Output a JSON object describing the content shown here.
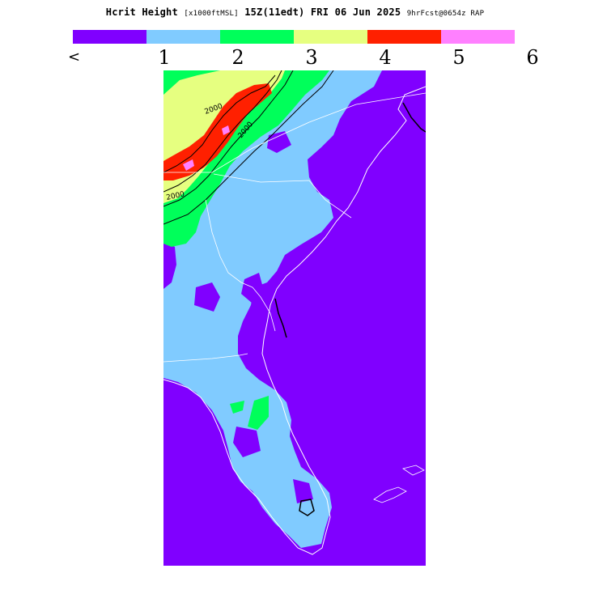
{
  "title": {
    "field": "Hcrit Height",
    "units": "[x1000ftMSL]",
    "valid": "15Z(11edt) FRI 06 Jun 2025",
    "forecast": "9hrFcst@0654z RAP"
  },
  "legend": {
    "left_marker": "<",
    "ticks": [
      "1",
      "2",
      "3",
      "4",
      "5",
      "6"
    ],
    "colors": [
      "#8000ff",
      "#80cbff",
      "#00ff5a",
      "#e6ff80",
      "#ff2000",
      "#ff80ff"
    ]
  },
  "map": {
    "region": "Southeast US",
    "contour_labels": [
      "2000",
      "2000",
      "2000"
    ]
  }
}
